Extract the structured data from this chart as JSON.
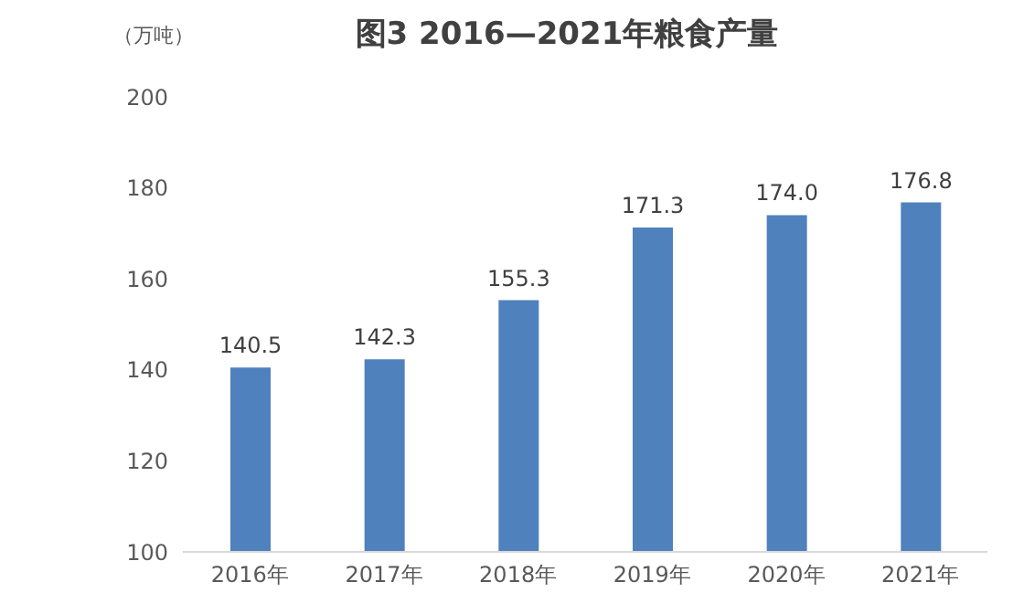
{
  "chart_data": {
    "type": "bar",
    "title": "图3  2016—2021年粮食产量",
    "ylabel": "（万吨）",
    "categories": [
      "2016年",
      "2017年",
      "2018年",
      "2019年",
      "2020年",
      "2021年"
    ],
    "values": [
      140.5,
      142.3,
      155.3,
      171.3,
      174.0,
      176.8
    ],
    "value_labels": [
      "140.5",
      "142.3",
      "155.3",
      "171.3",
      "174.0",
      "176.8"
    ],
    "color": "#4f81bd",
    "ylim": [
      100,
      200
    ],
    "yticks": [
      100,
      120,
      140,
      160,
      180,
      200
    ],
    "grid": false,
    "legend": false
  }
}
